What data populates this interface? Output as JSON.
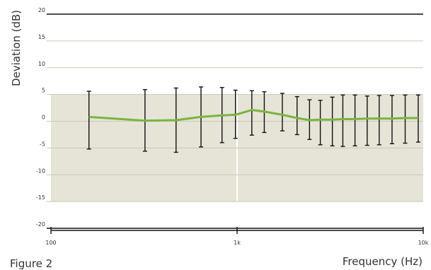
{
  "caption": "Figure 2",
  "chart_data": {
    "type": "line",
    "xlabel": "Frequency (Hz)",
    "ylabel": "Deviation (dB)",
    "x_scale": "log",
    "xlim": [
      100,
      10000
    ],
    "ylim": [
      -20,
      20
    ],
    "x_ticks": [
      {
        "value": 100,
        "label": "100"
      },
      {
        "value": 1000,
        "label": "1k"
      },
      {
        "value": 10000,
        "label": "10k"
      }
    ],
    "y_ticks": [
      {
        "value": 20,
        "label": "20"
      },
      {
        "value": 15,
        "label": "15"
      },
      {
        "value": 10,
        "label": "10"
      },
      {
        "value": 5,
        "label": "5"
      },
      {
        "value": 0,
        "label": "0"
      },
      {
        "value": -5,
        "label": "-5"
      },
      {
        "value": -10,
        "label": "-10"
      },
      {
        "value": -15,
        "label": "-15"
      },
      {
        "value": -20,
        "label": "-20"
      }
    ],
    "tolerance_band": [
      -15,
      5
    ],
    "grid": "horizontal",
    "x": [
      160,
      320,
      470,
      640,
      830,
      980,
      1200,
      1400,
      1750,
      2100,
      2450,
      2800,
      3250,
      3700,
      4300,
      5000,
      5800,
      6800,
      8000,
      9400
    ],
    "series": [
      {
        "values": [
          0.8,
          0.1,
          0.2,
          0.8,
          1.1,
          1.2,
          2.1,
          1.8,
          1.2,
          0.6,
          0.2,
          0.3,
          0.3,
          0.4,
          0.4,
          0.5,
          0.5,
          0.5,
          0.6,
          0.6
        ],
        "error_low": [
          -5.2,
          -5.6,
          -5.8,
          -4.8,
          -4.0,
          -3.2,
          -2.6,
          -2.1,
          -1.8,
          -2.5,
          -3.4,
          -4.4,
          -4.6,
          -4.7,
          -4.6,
          -4.5,
          -4.4,
          -4.2,
          -4.1,
          -3.9
        ],
        "error_high": [
          5.6,
          5.9,
          6.2,
          6.4,
          6.3,
          5.8,
          5.7,
          5.5,
          5.2,
          4.6,
          4.0,
          3.9,
          4.5,
          4.9,
          4.9,
          4.7,
          4.8,
          4.8,
          4.9,
          4.9
        ]
      }
    ],
    "colors": {
      "line": "#7cb342",
      "band": "#e5e4d6",
      "grid": "#c8c8bc",
      "error_bar": "#111111",
      "axis": "#111111"
    }
  }
}
